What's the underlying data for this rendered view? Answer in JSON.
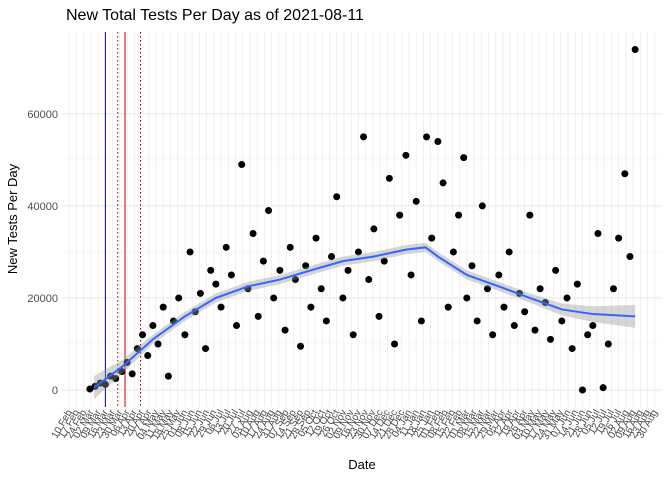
{
  "chart_data": {
    "type": "scatter",
    "title": "New Total Tests Per Day as of 2021-08-11",
    "x_label": "Date",
    "y_label": "New Tests Per Day",
    "color": "#000000",
    "grid": true,
    "xlim": [
      "2020-02-03",
      "2021-09-06"
    ],
    "ylim": [
      -3700,
      77800
    ],
    "yticks": [
      0,
      20000,
      40000,
      60000
    ],
    "xticks": [
      {
        "value": "2020-02-10",
        "label": "10 Feb"
      },
      {
        "value": "2020-02-17",
        "label": "17 Feb"
      },
      {
        "value": "2020-02-24",
        "label": "24 Feb"
      },
      {
        "value": "2020-03-02",
        "label": "02 Mar"
      },
      {
        "value": "2020-03-09",
        "label": "09 Mar"
      },
      {
        "value": "2020-03-16",
        "label": "16 Mar"
      },
      {
        "value": "2020-03-23",
        "label": "23 Mar"
      },
      {
        "value": "2020-03-30",
        "label": "30 Mar"
      },
      {
        "value": "2020-04-06",
        "label": "06 Apr"
      },
      {
        "value": "2020-04-13",
        "label": "13 Apr"
      },
      {
        "value": "2020-04-20",
        "label": "20 Apr"
      },
      {
        "value": "2020-04-27",
        "label": "27 Apr"
      },
      {
        "value": "2020-05-04",
        "label": "04 May"
      },
      {
        "value": "2020-05-11",
        "label": "11 May"
      },
      {
        "value": "2020-05-18",
        "label": "18 May"
      },
      {
        "value": "2020-05-25",
        "label": "25 May"
      },
      {
        "value": "2020-06-01",
        "label": "01 Jun"
      },
      {
        "value": "2020-06-08",
        "label": "08 Jun"
      },
      {
        "value": "2020-06-15",
        "label": "15 Jun"
      },
      {
        "value": "2020-06-22",
        "label": "22 Jun"
      },
      {
        "value": "2020-06-29",
        "label": "29 Jun"
      },
      {
        "value": "2020-07-06",
        "label": "06 Jul"
      },
      {
        "value": "2020-07-13",
        "label": "13 Jul"
      },
      {
        "value": "2020-07-20",
        "label": "20 Jul"
      },
      {
        "value": "2020-07-27",
        "label": "27 Jul"
      },
      {
        "value": "2020-08-03",
        "label": "03 Aug"
      },
      {
        "value": "2020-08-10",
        "label": "10 Aug"
      },
      {
        "value": "2020-08-17",
        "label": "17 Aug"
      },
      {
        "value": "2020-08-24",
        "label": "24 Aug"
      },
      {
        "value": "2020-08-31",
        "label": "31 Aug"
      },
      {
        "value": "2020-09-07",
        "label": "07 Sep"
      },
      {
        "value": "2020-09-14",
        "label": "14 Sep"
      },
      {
        "value": "2020-09-21",
        "label": "21 Sep"
      },
      {
        "value": "2020-09-28",
        "label": "28 Sep"
      },
      {
        "value": "2020-10-05",
        "label": "05 Oct"
      },
      {
        "value": "2020-10-12",
        "label": "12 Oct"
      },
      {
        "value": "2020-10-19",
        "label": "19 Oct"
      },
      {
        "value": "2020-10-26",
        "label": "26 Oct"
      },
      {
        "value": "2020-11-02",
        "label": "02 Nov"
      },
      {
        "value": "2020-11-09",
        "label": "09 Nov"
      },
      {
        "value": "2020-11-16",
        "label": "16 Nov"
      },
      {
        "value": "2020-11-23",
        "label": "23 Nov"
      },
      {
        "value": "2020-11-30",
        "label": "30 Nov"
      },
      {
        "value": "2020-12-07",
        "label": "07 Dec"
      },
      {
        "value": "2020-12-14",
        "label": "14 Dec"
      },
      {
        "value": "2020-12-21",
        "label": "21 Dec"
      },
      {
        "value": "2020-12-28",
        "label": "28 Dec"
      },
      {
        "value": "2021-01-04",
        "label": "04 Jan"
      },
      {
        "value": "2021-01-11",
        "label": "11 Jan"
      },
      {
        "value": "2021-01-18",
        "label": "18 Jan"
      },
      {
        "value": "2021-01-25",
        "label": "25 Jan"
      },
      {
        "value": "2021-02-01",
        "label": "01 Feb"
      },
      {
        "value": "2021-02-08",
        "label": "08 Feb"
      },
      {
        "value": "2021-02-15",
        "label": "15 Feb"
      },
      {
        "value": "2021-02-22",
        "label": "22 Feb"
      },
      {
        "value": "2021-03-01",
        "label": "01 Mar"
      },
      {
        "value": "2021-03-08",
        "label": "08 Mar"
      },
      {
        "value": "2021-03-15",
        "label": "15 Mar"
      },
      {
        "value": "2021-03-22",
        "label": "22 Mar"
      },
      {
        "value": "2021-03-29",
        "label": "29 Mar"
      },
      {
        "value": "2021-04-05",
        "label": "05 Apr"
      },
      {
        "value": "2021-04-12",
        "label": "12 Apr"
      },
      {
        "value": "2021-04-19",
        "label": "19 Apr"
      },
      {
        "value": "2021-04-26",
        "label": "26 Apr"
      },
      {
        "value": "2021-05-03",
        "label": "03 May"
      },
      {
        "value": "2021-05-10",
        "label": "10 May"
      },
      {
        "value": "2021-05-17",
        "label": "17 May"
      },
      {
        "value": "2021-05-24",
        "label": "24 May"
      },
      {
        "value": "2021-05-31",
        "label": "31 May"
      },
      {
        "value": "2021-06-07",
        "label": "07 Jun"
      },
      {
        "value": "2021-06-14",
        "label": "14 Jun"
      },
      {
        "value": "2021-06-21",
        "label": "21 Jun"
      },
      {
        "value": "2021-06-28",
        "label": "28 Jun"
      },
      {
        "value": "2021-07-05",
        "label": "05 Jul"
      },
      {
        "value": "2021-07-12",
        "label": "12 Jul"
      },
      {
        "value": "2021-07-19",
        "label": "19 Jul"
      },
      {
        "value": "2021-07-26",
        "label": "26 Jul"
      },
      {
        "value": "2021-08-02",
        "label": "02 Aug"
      },
      {
        "value": "2021-08-09",
        "label": "09 Aug"
      },
      {
        "value": "2021-08-16",
        "label": "16 Aug"
      },
      {
        "value": "2021-08-23",
        "label": "23 Aug"
      },
      {
        "value": "2021-08-30",
        "label": "30 Aug"
      }
    ],
    "x": [
      "2020-03-01",
      "2020-03-06",
      "2020-03-11",
      "2020-03-16",
      "2020-03-21",
      "2020-03-26",
      "2020-04-01",
      "2020-04-06",
      "2020-04-11",
      "2020-04-16",
      "2020-04-21",
      "2020-04-26",
      "2020-05-01",
      "2020-05-06",
      "2020-05-11",
      "2020-05-16",
      "2020-05-21",
      "2020-05-26",
      "2020-06-01",
      "2020-06-06",
      "2020-06-11",
      "2020-06-16",
      "2020-06-21",
      "2020-06-26",
      "2020-07-01",
      "2020-07-06",
      "2020-07-11",
      "2020-07-16",
      "2020-07-21",
      "2020-07-26",
      "2020-08-01",
      "2020-08-06",
      "2020-08-11",
      "2020-08-16",
      "2020-08-21",
      "2020-08-26",
      "2020-09-01",
      "2020-09-06",
      "2020-09-11",
      "2020-09-16",
      "2020-09-21",
      "2020-09-26",
      "2020-10-01",
      "2020-10-06",
      "2020-10-11",
      "2020-10-16",
      "2020-10-21",
      "2020-10-26",
      "2020-11-01",
      "2020-11-06",
      "2020-11-11",
      "2020-11-16",
      "2020-11-21",
      "2020-11-26",
      "2020-12-01",
      "2020-12-06",
      "2020-12-11",
      "2020-12-16",
      "2020-12-21",
      "2020-12-26",
      "2021-01-01",
      "2021-01-06",
      "2021-01-11",
      "2021-01-16",
      "2021-01-21",
      "2021-01-26",
      "2021-02-01",
      "2021-02-06",
      "2021-02-11",
      "2021-02-16",
      "2021-02-21",
      "2021-02-26",
      "2021-03-01",
      "2021-03-06",
      "2021-03-11",
      "2021-03-16",
      "2021-03-21",
      "2021-03-26",
      "2021-04-01",
      "2021-04-06",
      "2021-04-11",
      "2021-04-16",
      "2021-04-21",
      "2021-04-26",
      "2021-05-01",
      "2021-05-06",
      "2021-05-11",
      "2021-05-16",
      "2021-05-21",
      "2021-05-26",
      "2021-06-01",
      "2021-06-06",
      "2021-06-11",
      "2021-06-16",
      "2021-06-21",
      "2021-06-26",
      "2021-07-01",
      "2021-07-06",
      "2021-07-11",
      "2021-07-16",
      "2021-07-21",
      "2021-07-26",
      "2021-08-01",
      "2021-08-06",
      "2021-08-11"
    ],
    "values": [
      200,
      800,
      1500,
      1200,
      3000,
      2500,
      4000,
      6000,
      3500,
      9000,
      12000,
      7500,
      14000,
      10000,
      18000,
      3000,
      15000,
      20000,
      12000,
      30000,
      17000,
      21000,
      9000,
      26000,
      23000,
      18000,
      31000,
      25000,
      14000,
      49000,
      22000,
      34000,
      16000,
      28000,
      39000,
      20000,
      26000,
      13000,
      31000,
      24000,
      9500,
      27000,
      18000,
      33000,
      22000,
      15000,
      29000,
      42000,
      20000,
      26000,
      12000,
      30000,
      55000,
      24000,
      35000,
      16000,
      28000,
      46000,
      10000,
      38000,
      51000,
      25000,
      41000,
      15000,
      55000,
      33000,
      54000,
      45000,
      18000,
      30000,
      38000,
      50500,
      20000,
      27000,
      15000,
      40000,
      22000,
      12000,
      25000,
      18000,
      30000,
      14000,
      21000,
      17000,
      38000,
      13000,
      22000,
      19000,
      11000,
      26000,
      15000,
      20000,
      9000,
      23000,
      0,
      12000,
      14000,
      34000,
      500,
      10000,
      22000,
      33000,
      47000,
      29000,
      74000
    ],
    "smooth": {
      "color": "#3366ff",
      "band_color": "#999999",
      "x": [
        "2020-03-05",
        "2020-04-01",
        "2020-05-01",
        "2020-06-01",
        "2020-07-01",
        "2020-08-01",
        "2020-09-01",
        "2020-10-01",
        "2020-11-01",
        "2020-12-01",
        "2021-01-01",
        "2021-01-20",
        "2021-02-01",
        "2021-03-01",
        "2021-04-01",
        "2021-05-01",
        "2021-06-01",
        "2021-07-01",
        "2021-08-11"
      ],
      "y": [
        500,
        5000,
        11000,
        16000,
        20000,
        22500,
        24000,
        26000,
        28000,
        29000,
        30500,
        31000,
        29000,
        25000,
        22500,
        20000,
        17500,
        16500,
        16000
      ],
      "lower": [
        -2000,
        3500,
        10000,
        15000,
        19000,
        21500,
        23000,
        25000,
        27000,
        28000,
        29500,
        30000,
        28000,
        24000,
        21500,
        19000,
        16200,
        14800,
        13500
      ],
      "upper": [
        3000,
        6500,
        12000,
        17000,
        21000,
        23500,
        25000,
        27000,
        29000,
        30000,
        31500,
        32000,
        30000,
        26000,
        23500,
        21000,
        18800,
        18200,
        18500
      ]
    },
    "vlines": [
      {
        "x": "2020-03-16",
        "color": "#00008b",
        "linestyle": "solid"
      },
      {
        "x": "2020-03-28",
        "color": "#8b0000",
        "linestyle": "dotted"
      },
      {
        "x": "2020-04-04",
        "color": "#cc0000",
        "linestyle": "solid"
      },
      {
        "x": "2020-04-19",
        "color": "#8b0000",
        "linestyle": "dotted"
      }
    ]
  }
}
